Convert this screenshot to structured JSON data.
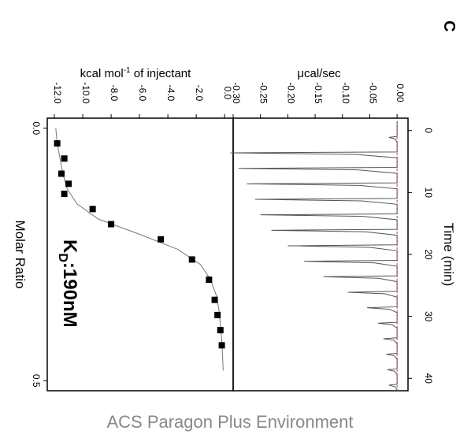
{
  "panel_label": "C",
  "footer": "ACS Paragon Plus Environment",
  "colors": {
    "trace": "#555555",
    "baseline": "#cc3333",
    "points": "#000000",
    "fit": "#777777",
    "axes": "#000000"
  },
  "chart_data": [
    {
      "type": "line",
      "title": "",
      "xlabel": "Time (min)",
      "ylabel": "μcal/sec",
      "xlim": [
        -2,
        42
      ],
      "ylim": [
        -0.3,
        0.02
      ],
      "x_ticks": [
        0,
        10,
        20,
        30,
        40
      ],
      "y_ticks": [
        0.0,
        -0.05,
        -0.1,
        -0.15,
        -0.2,
        -0.25,
        -0.3
      ],
      "y_tick_labels": [
        "0.00",
        "-0.05",
        "-0.10",
        "-0.15",
        "-0.20",
        "-0.25",
        "-0.30"
      ],
      "grid": false,
      "series": [
        {
          "injection_times": [
            1,
            3.5,
            6,
            8.5,
            11,
            13.5,
            16,
            18.5,
            21,
            23.5,
            26,
            28.5,
            31,
            33.5,
            36,
            38.5,
            41
          ],
          "peak_minimum": [
            -0.015,
            -0.305,
            -0.29,
            -0.275,
            -0.26,
            -0.25,
            -0.23,
            -0.2,
            -0.17,
            -0.135,
            -0.09,
            -0.055,
            -0.035,
            -0.025,
            -0.02,
            -0.018,
            -0.015
          ]
        }
      ]
    },
    {
      "type": "scatter",
      "title": "",
      "xlabel": "Molar Ratio",
      "ylabel": "kcal mol-1 of injectant",
      "ylabel_main": "kcal mol",
      "ylabel_sup": "-1",
      "ylabel_rest": " of injectant",
      "xlim": [
        -0.02,
        0.52
      ],
      "ylim": [
        -12.5,
        0.6
      ],
      "x_ticks": [
        0.0,
        0.5
      ],
      "x_tick_labels": [
        "0.0",
        "0.5"
      ],
      "y_ticks": [
        0,
        -2,
        -4,
        -6,
        -8,
        -10,
        -12
      ],
      "y_tick_labels": [
        "0.0",
        "-2.0",
        "-4.0",
        "-6.0",
        "-8.0",
        "-10.0",
        "-12.0"
      ],
      "grid": false,
      "annotation_main": "K",
      "annotation_sub": "D",
      "annotation_rest": ":190nM",
      "series": [
        {
          "x": [
            0.03,
            0.06,
            0.09,
            0.11,
            0.13,
            0.16,
            0.19,
            0.22,
            0.26,
            0.3,
            0.34,
            0.37,
            0.4,
            0.43
          ],
          "y": [
            -11.8,
            -11.3,
            -11.5,
            -11.0,
            -11.3,
            -9.3,
            -8.0,
            -4.5,
            -2.3,
            -1.1,
            -0.7,
            -0.5,
            -0.3,
            -0.2
          ]
        }
      ],
      "fit": {
        "x": [
          0.0,
          0.03,
          0.06,
          0.09,
          0.12,
          0.15,
          0.18,
          0.21,
          0.24,
          0.27,
          0.3,
          0.33,
          0.36,
          0.39,
          0.42,
          0.45,
          0.48
        ],
        "y": [
          -11.9,
          -11.8,
          -11.6,
          -11.4,
          -11.1,
          -10.4,
          -8.9,
          -6.0,
          -3.3,
          -1.7,
          -1.0,
          -0.6,
          -0.4,
          -0.3,
          -0.2,
          -0.15,
          -0.1
        ]
      }
    }
  ]
}
